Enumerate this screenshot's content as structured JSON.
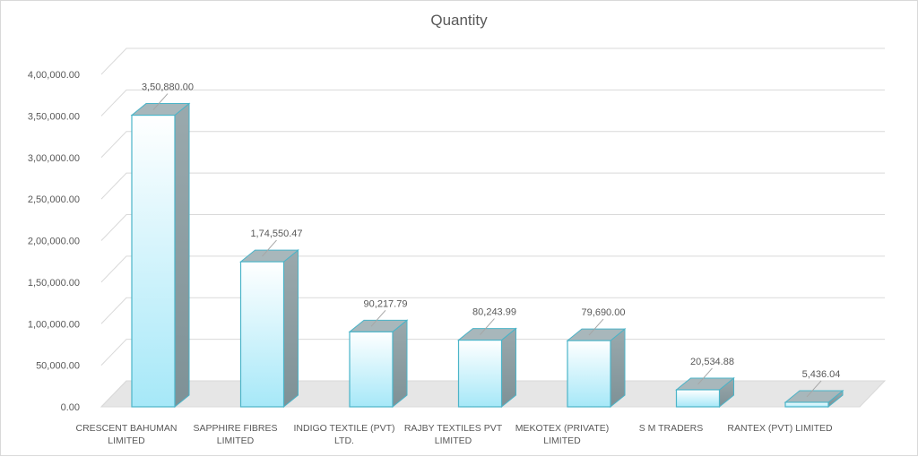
{
  "chart_data": {
    "type": "bar",
    "title": "Quantity",
    "xlabel": "",
    "ylabel": "",
    "ylim": [
      0,
      400000
    ],
    "yticks": [
      "0.00",
      "50,000.00",
      "1,00,000.00",
      "1,50,000.00",
      "2,00,000.00",
      "2,50,000.00",
      "3,00,000.00",
      "3,50,000.00",
      "4,00,000.00"
    ],
    "categories": [
      [
        "CRESCENT BAHUMAN",
        "LIMITED"
      ],
      [
        "SAPPHIRE FIBRES",
        "LIMITED"
      ],
      [
        "INDIGO TEXTILE (PVT)",
        "LTD."
      ],
      [
        "RAJBY TEXTILES PVT",
        "LIMITED"
      ],
      [
        "MEKOTEX (PRIVATE)",
        "LIMITED"
      ],
      [
        "S M TRADERS"
      ],
      [
        "RANTEX (PVT) LIMITED"
      ]
    ],
    "values": [
      350880.0,
      174550.47,
      90217.79,
      80243.99,
      79690.0,
      20534.88,
      5436.04
    ],
    "data_labels": [
      "3,50,880.00",
      "1,74,550.47",
      "90,217.79",
      "80,243.99",
      "79,690.00",
      "20,534.88",
      "5,436.04"
    ],
    "grid": true,
    "legend": "none",
    "colors": {
      "bar_front_top": "#ffffff",
      "bar_front_bottom": "#a6e8f8",
      "bar_side": "#8a9ea4",
      "bar_top": "#a8b7bb",
      "bar_edge": "#4bb4c8",
      "grid": "#d9d9d9",
      "floor": "#e6e6e6"
    }
  }
}
